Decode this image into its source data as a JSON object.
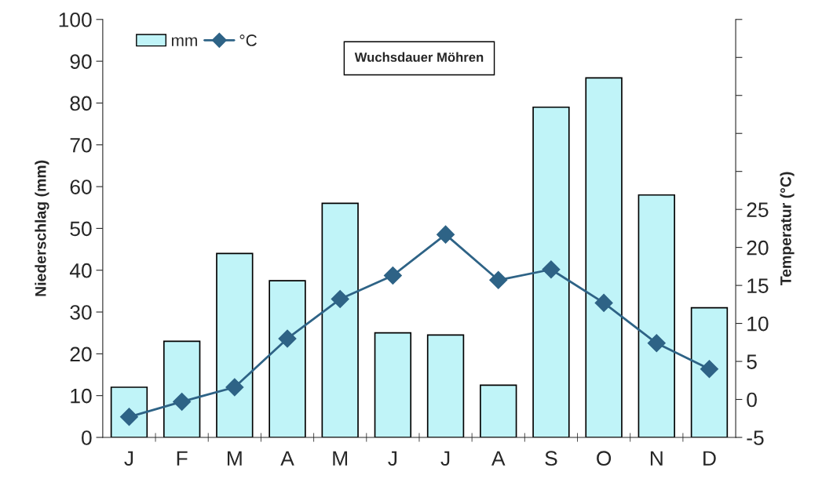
{
  "chart_data": {
    "type": "bar",
    "categories": [
      "J",
      "F",
      "M",
      "A",
      "M",
      "J",
      "J",
      "A",
      "S",
      "O",
      "N",
      "D"
    ],
    "ylabel": "Niederschlag (mm)",
    "y2label": "Temperatur (°C)",
    "annotations": [
      "Wuchsdauer Möhren"
    ],
    "series": [
      {
        "name": "mm",
        "color": "#c0f4f8",
        "values": [
          12,
          23,
          44,
          37.5,
          56,
          25,
          24.5,
          12.5,
          79,
          86,
          58,
          31
        ]
      },
      {
        "name": "°C",
        "type": "line",
        "axis": "y2",
        "color": "#2e6386",
        "marker": "diamond",
        "values": [
          -2.3,
          -0.3,
          1.6,
          8.0,
          13.2,
          16.3,
          21.7,
          15.7,
          17.1,
          12.7,
          7.4,
          4.0
        ]
      }
    ],
    "ylim": [
      0,
      100
    ],
    "yticks": [
      0,
      10,
      20,
      30,
      40,
      50,
      60,
      70,
      80,
      90,
      100
    ],
    "y2lim": [
      -5,
      50
    ],
    "y2ticks": [
      -5,
      0,
      5,
      10,
      15,
      20,
      25,
      {
        "value": 30,
        "label": null
      },
      {
        "value": 35,
        "label": null
      },
      {
        "value": 40,
        "label": null
      },
      {
        "value": 45,
        "label": null
      },
      {
        "value": 50,
        "label": null
      }
    ],
    "legend": "top left",
    "grid": false
  }
}
